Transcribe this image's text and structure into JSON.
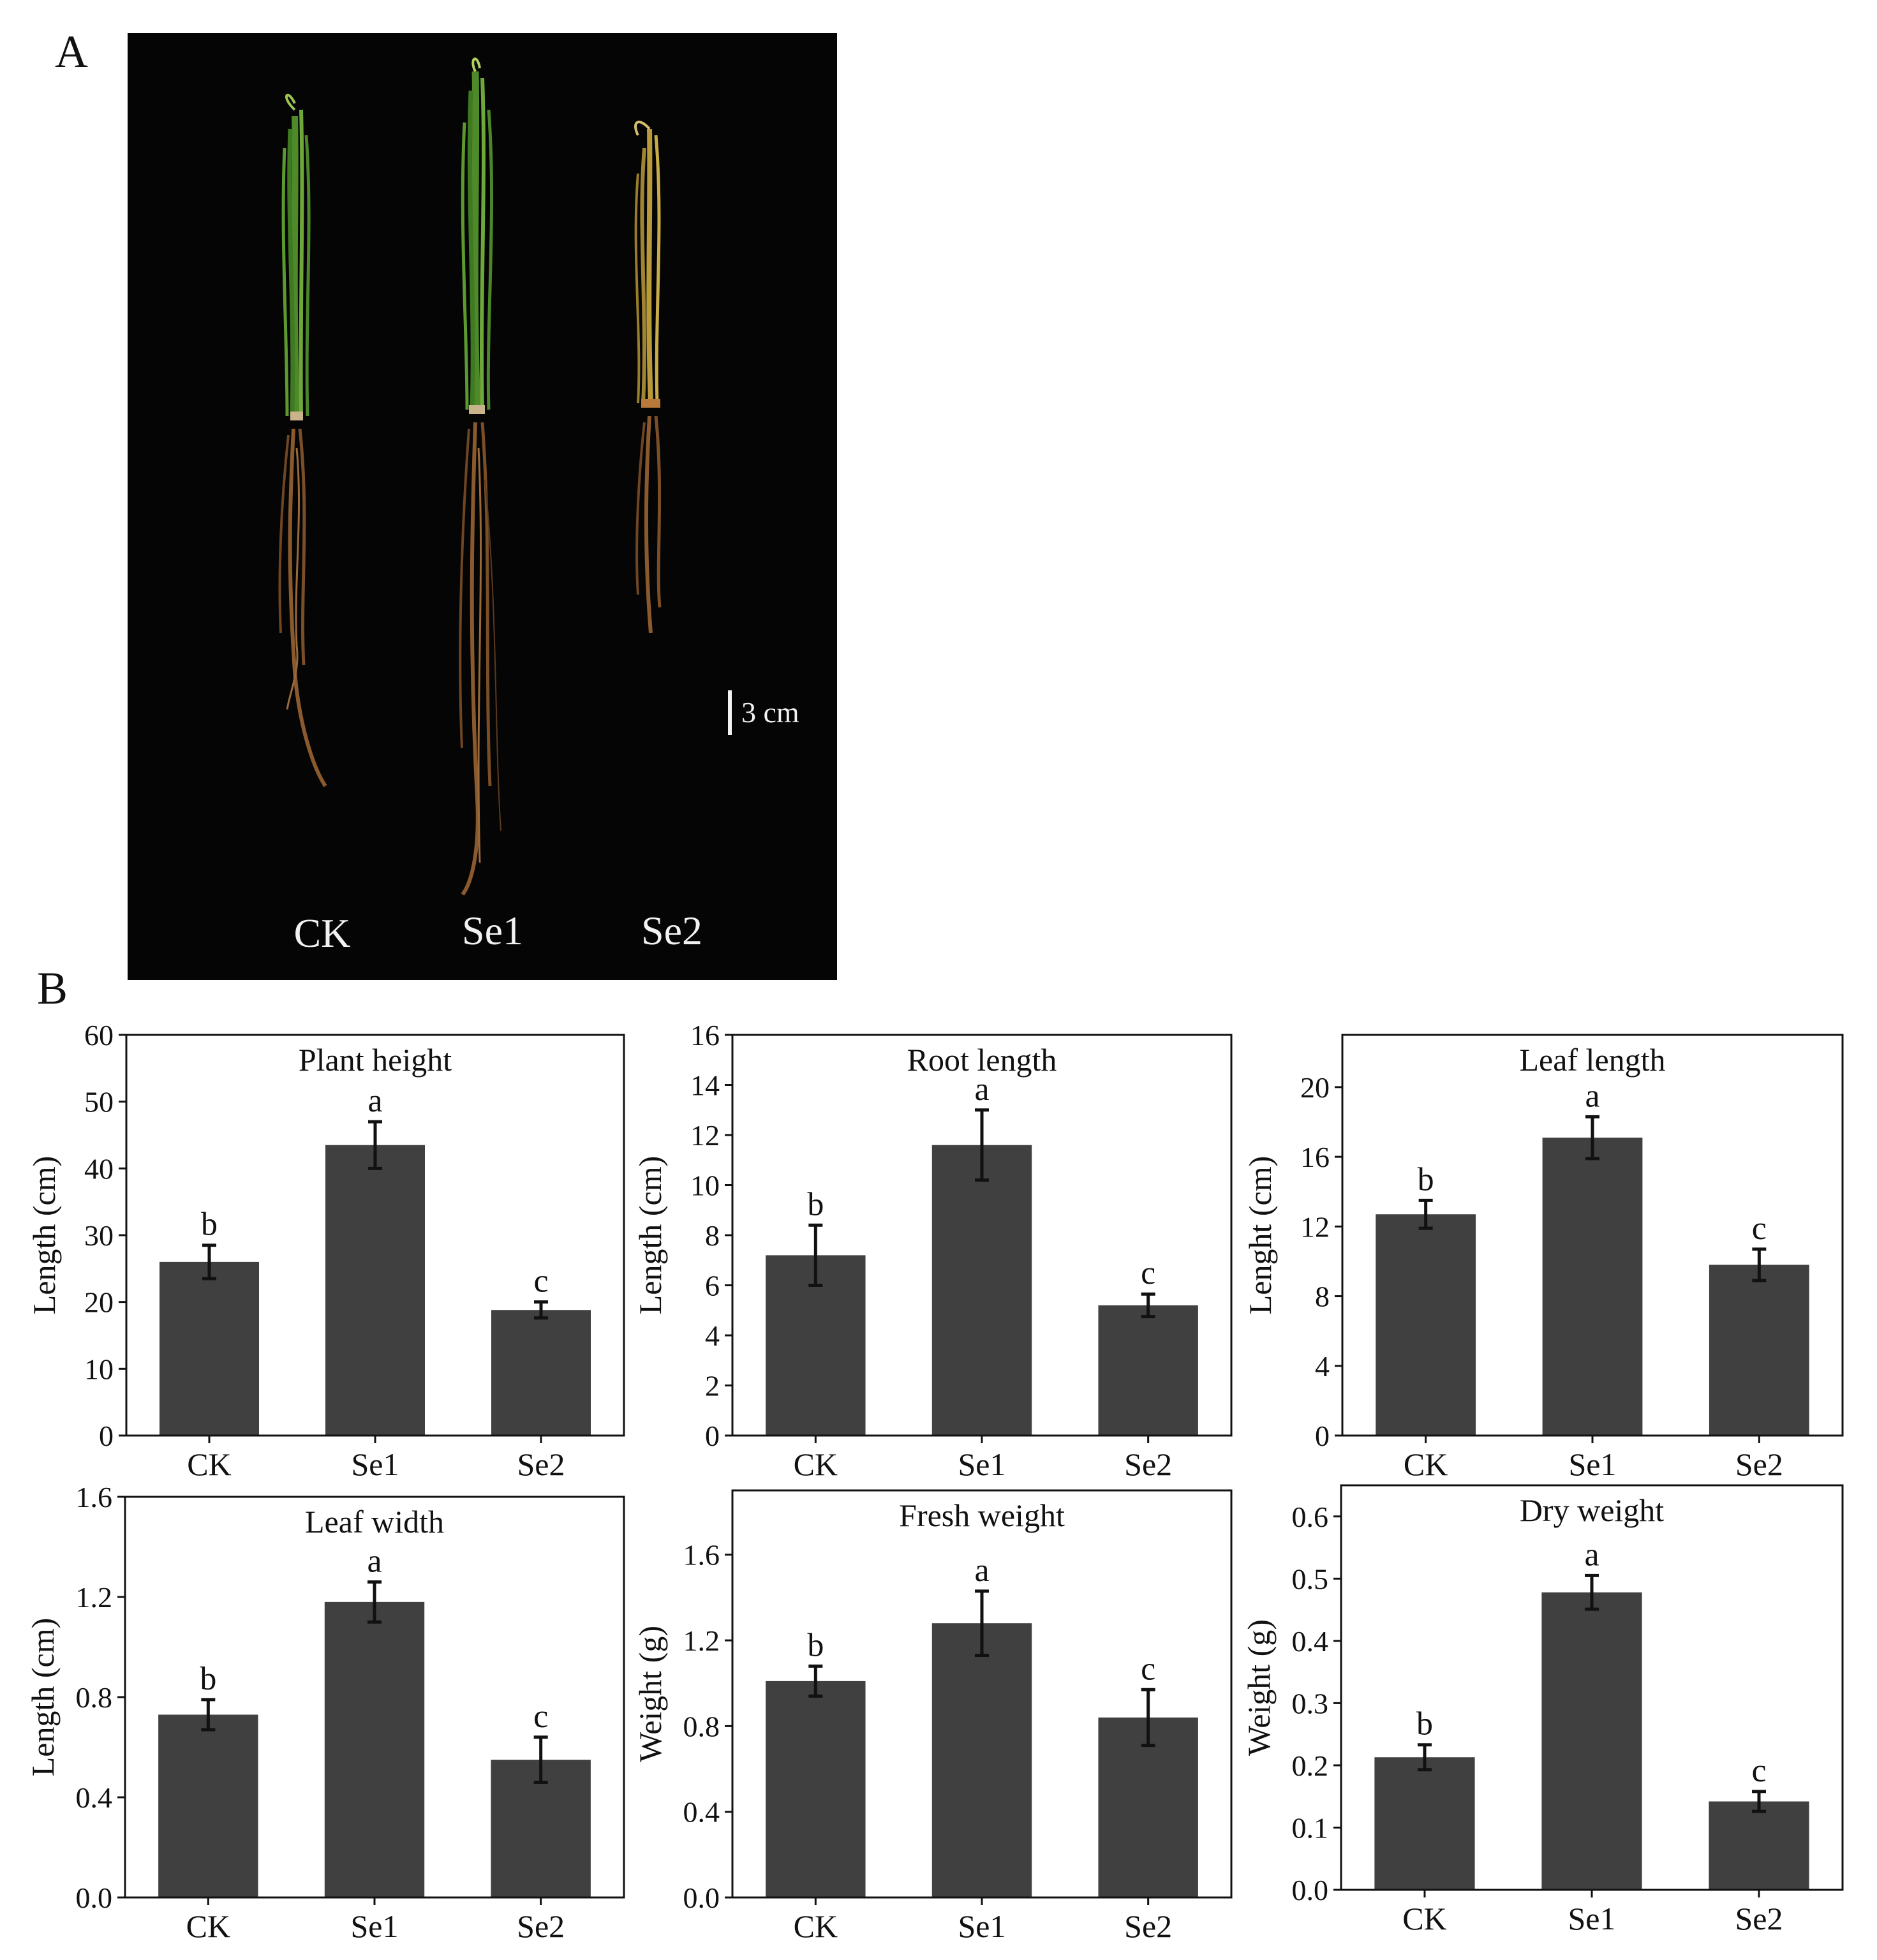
{
  "panel_a": {
    "letter": "A",
    "labels": [
      "CK",
      "Se1",
      "Se2"
    ],
    "scale_bar": "3 cm"
  },
  "panel_b": {
    "letter": "B"
  },
  "colors": {
    "bar": "#404040",
    "background_photo": "#050505",
    "axis": "#111111"
  },
  "chart_data": [
    {
      "type": "bar",
      "title": "Plant height",
      "ylabel": "Length (cm)",
      "categories": [
        "CK",
        "Se1",
        "Se2"
      ],
      "values": [
        26.0,
        43.5,
        18.8
      ],
      "errors": [
        2.5,
        3.5,
        1.2
      ],
      "letters": [
        "b",
        "a",
        "c"
      ],
      "ylim": [
        0,
        60
      ],
      "yticks": [
        0,
        10,
        20,
        30,
        40,
        50,
        60
      ],
      "yticklabels": [
        "0",
        "10",
        "20",
        "30",
        "40",
        "50",
        "60"
      ]
    },
    {
      "type": "bar",
      "title": "Root length",
      "ylabel": "Length (cm)",
      "categories": [
        "CK",
        "Se1",
        "Se2"
      ],
      "values": [
        7.2,
        11.6,
        5.2
      ],
      "errors": [
        1.2,
        1.4,
        0.45
      ],
      "letters": [
        "b",
        "a",
        "c"
      ],
      "ylim": [
        0,
        16
      ],
      "yticks": [
        0,
        2,
        4,
        6,
        8,
        10,
        12,
        14,
        16
      ],
      "yticklabels": [
        "0",
        "2",
        "4",
        "6",
        "8",
        "10",
        "12",
        "14",
        "16"
      ]
    },
    {
      "type": "bar",
      "title": "Leaf length",
      "ylabel": "Lenght (cm)",
      "categories": [
        "CK",
        "Se1",
        "Se2"
      ],
      "values": [
        12.7,
        17.1,
        9.8
      ],
      "errors": [
        0.8,
        1.2,
        0.9
      ],
      "letters": [
        "b",
        "a",
        "c"
      ],
      "ylim": [
        0,
        23
      ],
      "yticks": [
        0,
        4,
        8,
        12,
        16,
        20
      ],
      "yticklabels": [
        "0",
        "4",
        "8",
        "12",
        "16",
        "20"
      ]
    },
    {
      "type": "bar",
      "title": "Leaf width",
      "ylabel": "Length (cm)",
      "categories": [
        "CK",
        "Se1",
        "Se2"
      ],
      "values": [
        0.73,
        1.18,
        0.55
      ],
      "errors": [
        0.06,
        0.08,
        0.09
      ],
      "letters": [
        "b",
        "a",
        "c"
      ],
      "ylim": [
        0,
        1.6
      ],
      "yticks": [
        0,
        0.4,
        0.8,
        1.2,
        1.6
      ],
      "yticklabels": [
        "0.0",
        "0.4",
        "0.8",
        "1.2",
        "1.6"
      ]
    },
    {
      "type": "bar",
      "title": "Fresh weight",
      "ylabel": "Weight (g)",
      "categories": [
        "CK",
        "Se1",
        "Se2"
      ],
      "values": [
        1.01,
        1.28,
        0.84
      ],
      "errors": [
        0.07,
        0.15,
        0.13
      ],
      "letters": [
        "b",
        "a",
        "c"
      ],
      "ylim": [
        0,
        1.9
      ],
      "yticks": [
        0,
        0.4,
        0.8,
        1.2,
        1.6
      ],
      "yticklabels": [
        "0.0",
        "0.4",
        "0.8",
        "1.2",
        "1.6"
      ]
    },
    {
      "type": "bar",
      "title": "Dry weight",
      "ylabel": "Weight (g)",
      "categories": [
        "CK",
        "Se1",
        "Se2"
      ],
      "values": [
        0.213,
        0.478,
        0.142
      ],
      "errors": [
        0.02,
        0.027,
        0.016
      ],
      "letters": [
        "b",
        "a",
        "c"
      ],
      "ylim": [
        0,
        0.65
      ],
      "yticks": [
        0,
        0.1,
        0.2,
        0.3,
        0.4,
        0.5,
        0.6
      ],
      "yticklabels": [
        "0.0",
        "0.1",
        "0.2",
        "0.3",
        "0.4",
        "0.5",
        "0.6"
      ]
    }
  ]
}
